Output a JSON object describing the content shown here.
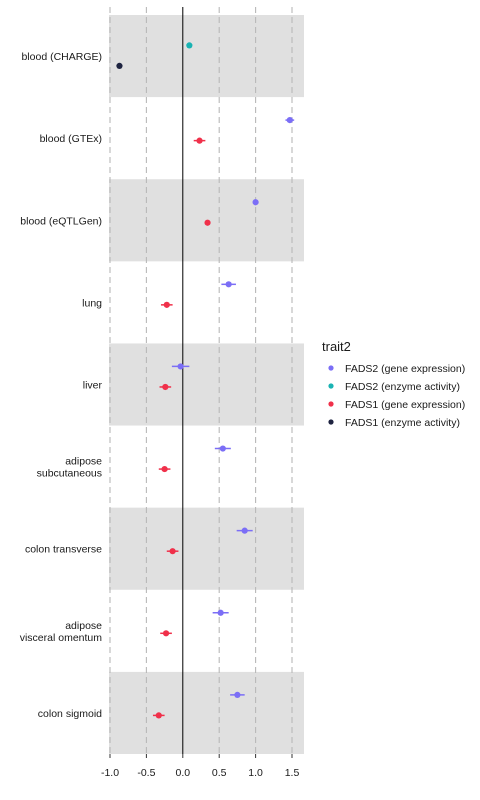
{
  "chart_data": {
    "type": "scatter",
    "subtype": "forest-plot",
    "title": "",
    "xlabel": "",
    "ylabel": "",
    "xlim": [
      -1.0,
      1.65
    ],
    "xticks": [
      -1.0,
      -0.5,
      0.0,
      0.5,
      1.0,
      1.5
    ],
    "xtick_labels": [
      "-1.0",
      "-0.5",
      "0.0",
      "0.5",
      "1.0",
      "1.5"
    ],
    "grid": "vertical dashed",
    "reference_line": 0,
    "row_shading": "alternating grey",
    "legend": {
      "title": "trait2",
      "position": "right",
      "entries": [
        {
          "name": "FADS2 (gene expression)",
          "color": "#7b6ef6"
        },
        {
          "name": "FADS2 (enzyme activity)",
          "color": "#1ab3b3"
        },
        {
          "name": "FADS1 (gene expression)",
          "color": "#f0304a"
        },
        {
          "name": "FADS1 (enzyme activity)",
          "color": "#1e2340"
        }
      ]
    },
    "categories": [
      {
        "label_lines": [
          "blood (CHARGE)"
        ]
      },
      {
        "label_lines": [
          "blood (GTEx)"
        ]
      },
      {
        "label_lines": [
          "blood (eQTLGen)"
        ]
      },
      {
        "label_lines": [
          "lung"
        ]
      },
      {
        "label_lines": [
          "liver"
        ]
      },
      {
        "label_lines": [
          "adipose",
          "subcutaneous"
        ]
      },
      {
        "label_lines": [
          "colon transverse"
        ]
      },
      {
        "label_lines": [
          "adipose",
          "visceral omentum"
        ]
      },
      {
        "label_lines": [
          "colon sigmoid"
        ]
      }
    ],
    "series": [
      {
        "name": "FADS2 (gene expression)",
        "color": "#7b6ef6",
        "points": [
          {
            "category": 1,
            "x": 1.47,
            "lo": 1.41,
            "hi": 1.53
          },
          {
            "category": 2,
            "x": 1.0,
            "lo": 0.98,
            "hi": 1.02
          },
          {
            "category": 3,
            "x": 0.63,
            "lo": 0.53,
            "hi": 0.73
          },
          {
            "category": 4,
            "x": -0.03,
            "lo": -0.15,
            "hi": 0.09
          },
          {
            "category": 5,
            "x": 0.55,
            "lo": 0.44,
            "hi": 0.66
          },
          {
            "category": 6,
            "x": 0.85,
            "lo": 0.74,
            "hi": 0.96
          },
          {
            "category": 7,
            "x": 0.52,
            "lo": 0.41,
            "hi": 0.63
          },
          {
            "category": 8,
            "x": 0.75,
            "lo": 0.65,
            "hi": 0.85
          }
        ]
      },
      {
        "name": "FADS2 (enzyme activity)",
        "color": "#1ab3b3",
        "points": [
          {
            "category": 0,
            "x": 0.09,
            "lo": 0.07,
            "hi": 0.11
          }
        ]
      },
      {
        "name": "FADS1 (gene expression)",
        "color": "#f0304a",
        "points": [
          {
            "category": 1,
            "x": 0.23,
            "lo": 0.15,
            "hi": 0.31
          },
          {
            "category": 2,
            "x": 0.34,
            "lo": 0.32,
            "hi": 0.36
          },
          {
            "category": 3,
            "x": -0.22,
            "lo": -0.3,
            "hi": -0.14
          },
          {
            "category": 4,
            "x": -0.24,
            "lo": -0.32,
            "hi": -0.16
          },
          {
            "category": 5,
            "x": -0.25,
            "lo": -0.33,
            "hi": -0.17
          },
          {
            "category": 6,
            "x": -0.14,
            "lo": -0.22,
            "hi": -0.06
          },
          {
            "category": 7,
            "x": -0.23,
            "lo": -0.31,
            "hi": -0.15
          },
          {
            "category": 8,
            "x": -0.33,
            "lo": -0.41,
            "hi": -0.25
          }
        ]
      },
      {
        "name": "FADS1 (enzyme activity)",
        "color": "#1e2340",
        "points": [
          {
            "category": 0,
            "x": -0.87,
            "lo": -0.89,
            "hi": -0.85
          }
        ]
      }
    ]
  }
}
